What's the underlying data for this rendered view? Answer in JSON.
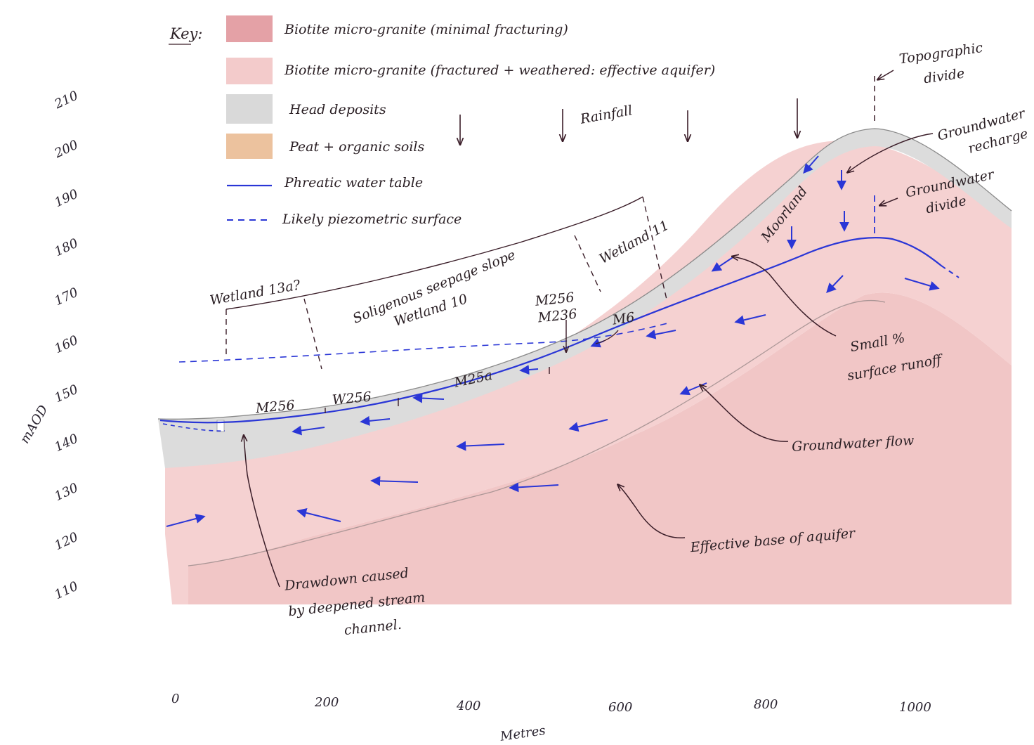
{
  "key": {
    "title": "Key:",
    "items": [
      {
        "label": "Biotite micro-granite (minimal fracturing)",
        "color": "#e4a1a6"
      },
      {
        "label": "Biotite micro-granite (fractured + weathered: effective aquifer)",
        "color": "#f3cbcb"
      },
      {
        "label": "Head deposits",
        "color": "#d9d9d9"
      },
      {
        "label": "Peat + organic soils",
        "color": "#ecc29e"
      },
      {
        "label": "Phreatic water table",
        "color": "#2a36d6"
      },
      {
        "label": "Likely piezometric surface",
        "color": "#2a36d6"
      }
    ]
  },
  "axes": {
    "y_label": "mAOD",
    "y_ticks": [
      "210",
      "200",
      "190",
      "180",
      "170",
      "160",
      "150",
      "140",
      "130",
      "120",
      "110"
    ],
    "x_label": "Metres",
    "x_ticks": [
      "0",
      "200",
      "400",
      "600",
      "800",
      "1000"
    ]
  },
  "labels": {
    "rainfall": "Rainfall",
    "topographic_divide": "Topographic divide",
    "groundwater_recharge": "Groundwater recharge",
    "groundwater_divide": "Groundwater divide",
    "moorland": "Moorland",
    "wetland_11": "Wetland 11",
    "soligenous": "Soligenous seepage slope",
    "wetland_10": "Wetland 10",
    "wetland_13a": "Wetland 13a?",
    "m256_m236": [
      "M256",
      "M236"
    ],
    "m6": "M6",
    "m25a": "M25a",
    "w256": "W256",
    "m256": "M256",
    "small_runoff": [
      "Small %",
      "surface runoff"
    ],
    "groundwater_flow": "Groundwater flow",
    "effective_base": "Effective base of aquifer",
    "drawdown": [
      "Drawdown caused",
      "by deepened stream",
      "channel."
    ]
  },
  "colors": {
    "granite_fractured": "#f3cbcb",
    "granite_minimal": "#eeb4b4",
    "head": "#dcdcdc",
    "water": "#2a36d6",
    "ink": "#3a1d28"
  }
}
